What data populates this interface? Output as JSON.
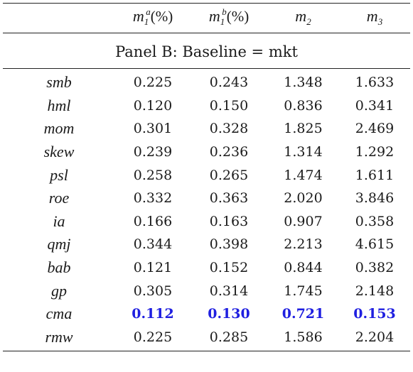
{
  "header": {
    "columns": [
      {
        "base": "",
        "sup": "",
        "sub": "",
        "suffix": ""
      },
      {
        "base": "m",
        "sub": "1",
        "sup": "a",
        "suffix": "(%)"
      },
      {
        "base": "m",
        "sub": "1",
        "sup": "b",
        "suffix": "(%)"
      },
      {
        "base": "m",
        "sub": "2",
        "sup": "",
        "suffix": ""
      },
      {
        "base": "m",
        "sub": "3",
        "sup": "",
        "suffix": ""
      }
    ]
  },
  "panel_title": "Panel B: Baseline = mkt",
  "highlight_color": "#1f1fe0",
  "rows": [
    {
      "label": "smb",
      "values": [
        "0.225",
        "0.243",
        "1.348",
        "1.633"
      ],
      "highlight": false
    },
    {
      "label": "hml",
      "values": [
        "0.120",
        "0.150",
        "0.836",
        "0.341"
      ],
      "highlight": false
    },
    {
      "label": "mom",
      "values": [
        "0.301",
        "0.328",
        "1.825",
        "2.469"
      ],
      "highlight": false
    },
    {
      "label": "skew",
      "values": [
        "0.239",
        "0.236",
        "1.314",
        "1.292"
      ],
      "highlight": false
    },
    {
      "label": "psl",
      "values": [
        "0.258",
        "0.265",
        "1.474",
        "1.611"
      ],
      "highlight": false
    },
    {
      "label": "roe",
      "values": [
        "0.332",
        "0.363",
        "2.020",
        "3.846"
      ],
      "highlight": false
    },
    {
      "label": "ia",
      "values": [
        "0.166",
        "0.163",
        "0.907",
        "0.358"
      ],
      "highlight": false
    },
    {
      "label": "qmj",
      "values": [
        "0.344",
        "0.398",
        "2.213",
        "4.615"
      ],
      "highlight": false
    },
    {
      "label": "bab",
      "values": [
        "0.121",
        "0.152",
        "0.844",
        "0.382"
      ],
      "highlight": false
    },
    {
      "label": "gp",
      "values": [
        "0.305",
        "0.314",
        "1.745",
        "2.148"
      ],
      "highlight": false
    },
    {
      "label": "cma",
      "values": [
        "0.112",
        "0.130",
        "0.721",
        "0.153"
      ],
      "highlight": true
    },
    {
      "label": "rmw",
      "values": [
        "0.225",
        "0.285",
        "1.586",
        "2.204"
      ],
      "highlight": false
    }
  ]
}
